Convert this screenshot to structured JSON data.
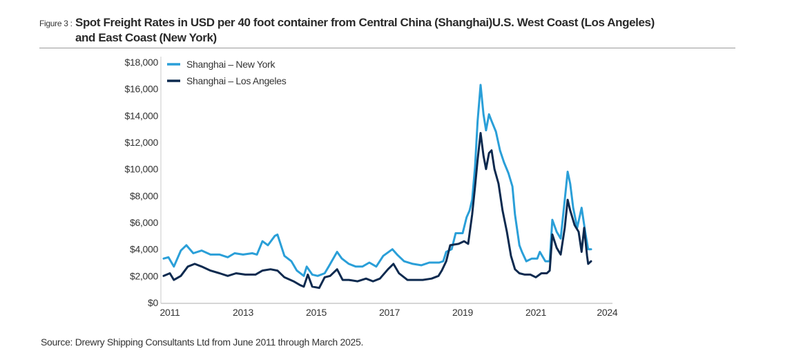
{
  "figure": {
    "label": "Figure 3 :",
    "title_line1": "Spot Freight Rates in USD per 40 foot container from Central China (Shanghai)U.S. West Coast (Los Angeles)",
    "title_line2": "and East Coast (New York)",
    "source": "Source: Drewry Shipping Consultants Ltd from June 2011 through March 2025."
  },
  "chart_data": {
    "type": "line",
    "title": "Spot Freight Rates in USD per 40 foot container from Central China (Shanghai)U.S. West Coast (Los Angeles) and East Coast (New York)",
    "xlabel": "",
    "ylabel": "",
    "y_unit": "USD per 40 ft container",
    "ylim": [
      0,
      18000
    ],
    "xlim": [
      2011.0,
      2023.9
    ],
    "y_ticks": [
      0,
      2000,
      4000,
      6000,
      8000,
      10000,
      12000,
      14000,
      16000,
      18000
    ],
    "y_tick_labels": [
      "$0",
      "$2,000",
      "$4,000",
      "$6,000",
      "$8,000",
      "$10,000",
      "$12,000",
      "$14,000",
      "$16,000",
      "$18,000"
    ],
    "x_ticks": [
      2011.0,
      2013.0,
      2015.0,
      2017.0,
      2019.0,
      2021.0,
      2022.95
    ],
    "x_tick_labels": [
      "2011",
      "2013",
      "2015",
      "2017",
      "2019",
      "2021",
      "2024"
    ],
    "grid": false,
    "legend": {
      "position": "top-left"
    },
    "series": [
      {
        "name": "Shanghai – New York",
        "color": "#2a9fd8",
        "points": [
          [
            2011.0,
            3300
          ],
          [
            2011.13,
            3400
          ],
          [
            2011.28,
            2700
          ],
          [
            2011.47,
            3900
          ],
          [
            2011.62,
            4300
          ],
          [
            2011.81,
            3700
          ],
          [
            2012.04,
            3900
          ],
          [
            2012.28,
            3600
          ],
          [
            2012.53,
            3600
          ],
          [
            2012.75,
            3400
          ],
          [
            2012.94,
            3700
          ],
          [
            2013.17,
            3600
          ],
          [
            2013.42,
            3700
          ],
          [
            2013.55,
            3600
          ],
          [
            2013.7,
            4600
          ],
          [
            2013.85,
            4300
          ],
          [
            2014.04,
            5000
          ],
          [
            2014.11,
            5100
          ],
          [
            2014.3,
            3500
          ],
          [
            2014.49,
            3100
          ],
          [
            2014.64,
            2400
          ],
          [
            2014.83,
            2000
          ],
          [
            2014.91,
            2700
          ],
          [
            2015.06,
            2100
          ],
          [
            2015.21,
            2000
          ],
          [
            2015.4,
            2200
          ],
          [
            2015.51,
            2700
          ],
          [
            2015.74,
            3800
          ],
          [
            2015.87,
            3300
          ],
          [
            2016.06,
            2900
          ],
          [
            2016.25,
            2700
          ],
          [
            2016.43,
            2700
          ],
          [
            2016.62,
            3000
          ],
          [
            2016.81,
            2700
          ],
          [
            2017.0,
            3500
          ],
          [
            2017.25,
            4000
          ],
          [
            2017.38,
            3600
          ],
          [
            2017.57,
            3100
          ],
          [
            2017.81,
            2900
          ],
          [
            2018.04,
            2800
          ],
          [
            2018.26,
            3000
          ],
          [
            2018.53,
            3000
          ],
          [
            2018.64,
            3100
          ],
          [
            2018.72,
            3800
          ],
          [
            2018.87,
            4000
          ],
          [
            2018.98,
            5200
          ],
          [
            2019.17,
            5200
          ],
          [
            2019.28,
            6400
          ],
          [
            2019.36,
            6900
          ],
          [
            2019.43,
            7700
          ],
          [
            2019.51,
            10200
          ],
          [
            2019.58,
            13600
          ],
          [
            2019.66,
            16300
          ],
          [
            2019.74,
            14100
          ],
          [
            2019.81,
            12900
          ],
          [
            2019.89,
            14100
          ],
          [
            2019.96,
            13600
          ],
          [
            2020.08,
            12800
          ],
          [
            2020.19,
            11400
          ],
          [
            2020.3,
            10500
          ],
          [
            2020.42,
            9700
          ],
          [
            2020.53,
            8700
          ],
          [
            2020.6,
            6600
          ],
          [
            2020.72,
            4300
          ],
          [
            2020.79,
            3800
          ],
          [
            2020.91,
            3100
          ],
          [
            2021.06,
            3300
          ],
          [
            2021.21,
            3300
          ],
          [
            2021.28,
            3800
          ],
          [
            2021.43,
            3100
          ],
          [
            2021.55,
            3100
          ],
          [
            2021.62,
            6200
          ],
          [
            2021.74,
            5300
          ],
          [
            2021.85,
            4800
          ],
          [
            2021.96,
            7700
          ],
          [
            2022.04,
            9800
          ],
          [
            2022.11,
            8900
          ],
          [
            2022.19,
            7100
          ],
          [
            2022.3,
            5600
          ],
          [
            2022.42,
            7100
          ],
          [
            2022.53,
            5100
          ],
          [
            2022.6,
            4000
          ],
          [
            2022.68,
            4000
          ]
        ]
      },
      {
        "name": "Shanghai – Los Angeles",
        "color": "#0d2a4f",
        "points": [
          [
            2011.0,
            2000
          ],
          [
            2011.17,
            2200
          ],
          [
            2011.28,
            1700
          ],
          [
            2011.47,
            2000
          ],
          [
            2011.66,
            2700
          ],
          [
            2011.85,
            2900
          ],
          [
            2012.04,
            2700
          ],
          [
            2012.28,
            2400
          ],
          [
            2012.53,
            2200
          ],
          [
            2012.75,
            2000
          ],
          [
            2012.98,
            2200
          ],
          [
            2013.23,
            2100
          ],
          [
            2013.51,
            2100
          ],
          [
            2013.7,
            2400
          ],
          [
            2013.92,
            2500
          ],
          [
            2014.11,
            2400
          ],
          [
            2014.3,
            1900
          ],
          [
            2014.55,
            1600
          ],
          [
            2014.74,
            1300
          ],
          [
            2014.83,
            1200
          ],
          [
            2014.94,
            2100
          ],
          [
            2015.06,
            1200
          ],
          [
            2015.25,
            1100
          ],
          [
            2015.4,
            1900
          ],
          [
            2015.55,
            2000
          ],
          [
            2015.74,
            2500
          ],
          [
            2015.89,
            1700
          ],
          [
            2016.06,
            1700
          ],
          [
            2016.3,
            1600
          ],
          [
            2016.53,
            1800
          ],
          [
            2016.72,
            1600
          ],
          [
            2016.91,
            1800
          ],
          [
            2017.13,
            2500
          ],
          [
            2017.28,
            2900
          ],
          [
            2017.43,
            2200
          ],
          [
            2017.66,
            1700
          ],
          [
            2017.85,
            1700
          ],
          [
            2018.08,
            1700
          ],
          [
            2018.32,
            1800
          ],
          [
            2018.51,
            2000
          ],
          [
            2018.6,
            2400
          ],
          [
            2018.72,
            3100
          ],
          [
            2018.83,
            4300
          ],
          [
            2019.06,
            4400
          ],
          [
            2019.21,
            4600
          ],
          [
            2019.32,
            4400
          ],
          [
            2019.43,
            6600
          ],
          [
            2019.51,
            8700
          ],
          [
            2019.58,
            10700
          ],
          [
            2019.66,
            12700
          ],
          [
            2019.74,
            11000
          ],
          [
            2019.81,
            10000
          ],
          [
            2019.89,
            11200
          ],
          [
            2019.96,
            11400
          ],
          [
            2020.04,
            10000
          ],
          [
            2020.15,
            8900
          ],
          [
            2020.26,
            6900
          ],
          [
            2020.38,
            5300
          ],
          [
            2020.49,
            3500
          ],
          [
            2020.6,
            2500
          ],
          [
            2020.72,
            2200
          ],
          [
            2020.87,
            2100
          ],
          [
            2021.02,
            2100
          ],
          [
            2021.17,
            1900
          ],
          [
            2021.32,
            2200
          ],
          [
            2021.47,
            2200
          ],
          [
            2021.55,
            2400
          ],
          [
            2021.62,
            5100
          ],
          [
            2021.74,
            4100
          ],
          [
            2021.85,
            3600
          ],
          [
            2021.96,
            5600
          ],
          [
            2022.04,
            7700
          ],
          [
            2022.11,
            6900
          ],
          [
            2022.23,
            5800
          ],
          [
            2022.34,
            5300
          ],
          [
            2022.42,
            3800
          ],
          [
            2022.49,
            5600
          ],
          [
            2022.57,
            3500
          ],
          [
            2022.6,
            2900
          ],
          [
            2022.68,
            3100
          ]
        ]
      }
    ]
  }
}
